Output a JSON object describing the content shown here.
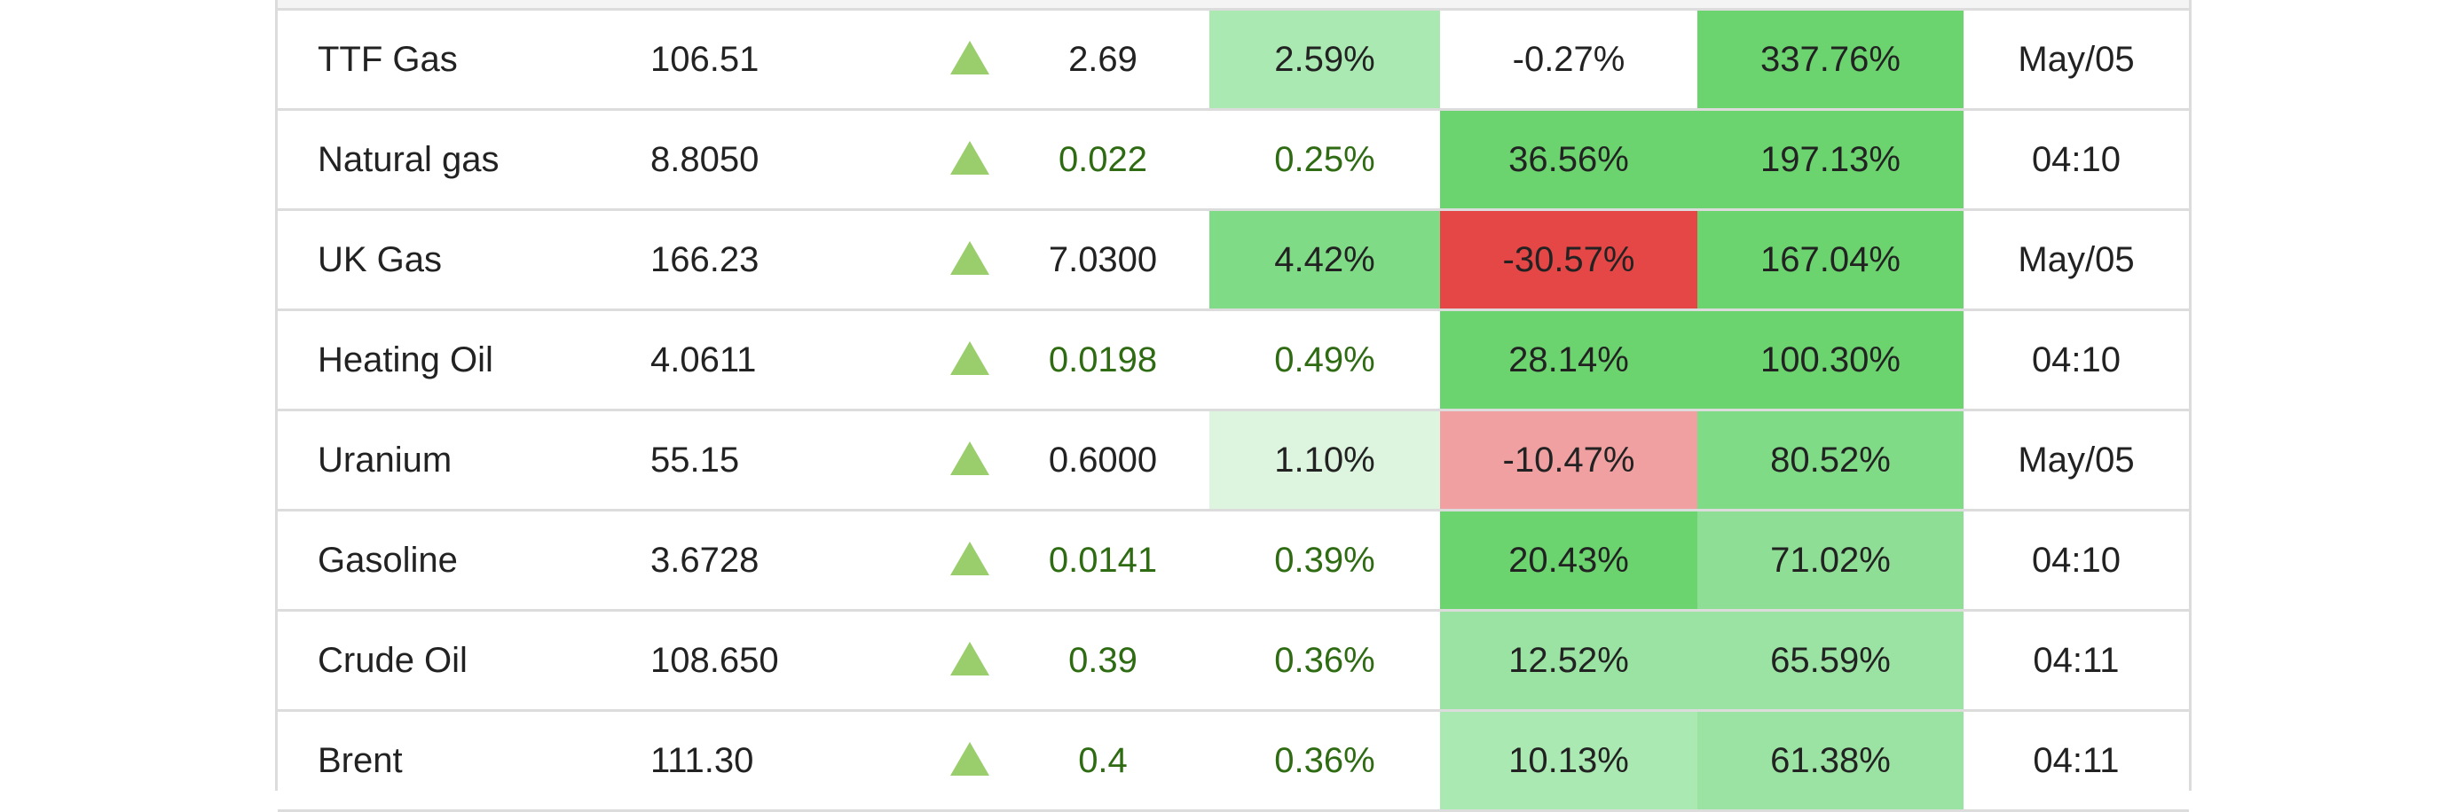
{
  "rows": [
    {
      "name": "TTF Gas",
      "price": "106.51",
      "change": "2.69",
      "change_color": "dark",
      "pct": "2.59%",
      "pct_bg": "#abe9b3",
      "pct_color": "dark",
      "week": "-0.27%",
      "week_bg": "#ffffff",
      "year": "337.76%",
      "year_bg": "#6bd46f",
      "date": "May/05",
      "arrow_icon": "up-triangle-icon"
    },
    {
      "name": "Natural gas",
      "price": "8.8050",
      "change": "0.022",
      "change_color": "green",
      "pct": "0.25%",
      "pct_bg": "#ffffff",
      "pct_color": "green",
      "week": "36.56%",
      "week_bg": "#6bd46f",
      "year": "197.13%",
      "year_bg": "#6bd46f",
      "date": "04:10",
      "arrow_icon": "up-triangle-icon"
    },
    {
      "name": "UK Gas",
      "price": "166.23",
      "change": "7.0300",
      "change_color": "dark",
      "pct": "4.42%",
      "pct_bg": "#80db87",
      "pct_color": "dark",
      "week": "-30.57%",
      "week_bg": "#e54646",
      "year": "167.04%",
      "year_bg": "#6bd46f",
      "date": "May/05",
      "arrow_icon": "up-triangle-icon"
    },
    {
      "name": "Heating Oil",
      "price": "4.0611",
      "change": "0.0198",
      "change_color": "green",
      "pct": "0.49%",
      "pct_bg": "#ffffff",
      "pct_color": "green",
      "week": "28.14%",
      "week_bg": "#6bd46f",
      "year": "100.30%",
      "year_bg": "#6bd46f",
      "date": "04:10",
      "arrow_icon": "up-triangle-icon"
    },
    {
      "name": "Uranium",
      "price": "55.15",
      "change": "0.6000",
      "change_color": "dark",
      "pct": "1.10%",
      "pct_bg": "#ddf5df",
      "pct_color": "dark",
      "week": "-10.47%",
      "week_bg": "#f0a0a0",
      "year": "80.52%",
      "year_bg": "#80db87",
      "date": "May/05",
      "arrow_icon": "up-triangle-icon"
    },
    {
      "name": "Gasoline",
      "price": "3.6728",
      "change": "0.0141",
      "change_color": "green",
      "pct": "0.39%",
      "pct_bg": "#ffffff",
      "pct_color": "green",
      "week": "20.43%",
      "week_bg": "#6bd46f",
      "year": "71.02%",
      "year_bg": "#8fde95",
      "date": "04:10",
      "arrow_icon": "up-triangle-icon"
    },
    {
      "name": "Crude Oil",
      "price": "108.650",
      "change": "0.39",
      "change_color": "green",
      "pct": "0.36%",
      "pct_bg": "#ffffff",
      "pct_color": "green",
      "week": "12.52%",
      "week_bg": "#9be3a2",
      "year": "65.59%",
      "year_bg": "#9be3a2",
      "date": "04:11",
      "arrow_icon": "up-triangle-icon"
    },
    {
      "name": "Brent",
      "price": "111.30",
      "change": "0.4",
      "change_color": "green",
      "pct": "0.36%",
      "pct_bg": "#ffffff",
      "pct_color": "green",
      "week": "10.13%",
      "week_bg": "#abe9b3",
      "year": "61.38%",
      "year_bg": "#9be3a2",
      "date": "04:11",
      "arrow_icon": "up-triangle-icon"
    }
  ],
  "colors": {
    "arrow_up": "#9acd6b",
    "green_text": "#2e6b12",
    "dark_text": "#222222",
    "border": "#dcdcdc"
  }
}
